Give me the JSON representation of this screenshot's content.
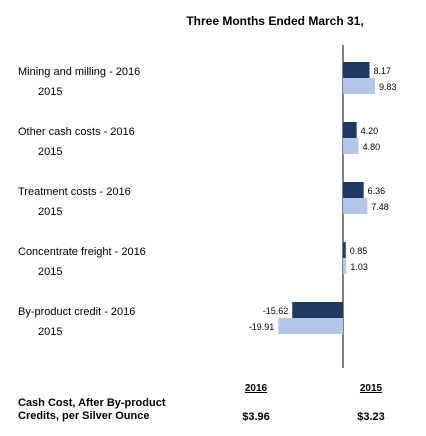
{
  "chart_data": {
    "type": "bar",
    "orientation": "horizontal",
    "title": "Three Months Ended March 31,",
    "categories": [
      {
        "name": "Mining and milling - 2016",
        "sub": "2015"
      },
      {
        "name": "Other cash costs - 2016",
        "sub": "2015"
      },
      {
        "name": "Treatment costs - 2016",
        "sub": "2015"
      },
      {
        "name": "Concentrate freight - 2016",
        "sub": "2015"
      },
      {
        "name": "By-product credit - 2016",
        "sub": "2015"
      }
    ],
    "series": [
      {
        "values": [
          8.17,
          4.2,
          6.36,
          0.85,
          -15.62
        ],
        "labels": [
          "8.17",
          "4.20",
          "6.36",
          "0.85",
          "-15.62"
        ],
        "color": "#1f3864"
      },
      {
        "values": [
          9.83,
          4.8,
          7.48,
          1.03,
          -19.91
        ],
        "labels": [
          "9.83",
          "4.80",
          "7.48",
          "1.03",
          "-19.91"
        ],
        "color": "#b4c7e7"
      }
    ],
    "xlim": [
      -20,
      10
    ]
  },
  "footer": {
    "label": "Cash Cost, After By-product Credits, per Silver Ounce",
    "col_2016": "2016",
    "col_2015": "2015",
    "val_2016": "$3.96",
    "val_2015": "$3.23"
  }
}
